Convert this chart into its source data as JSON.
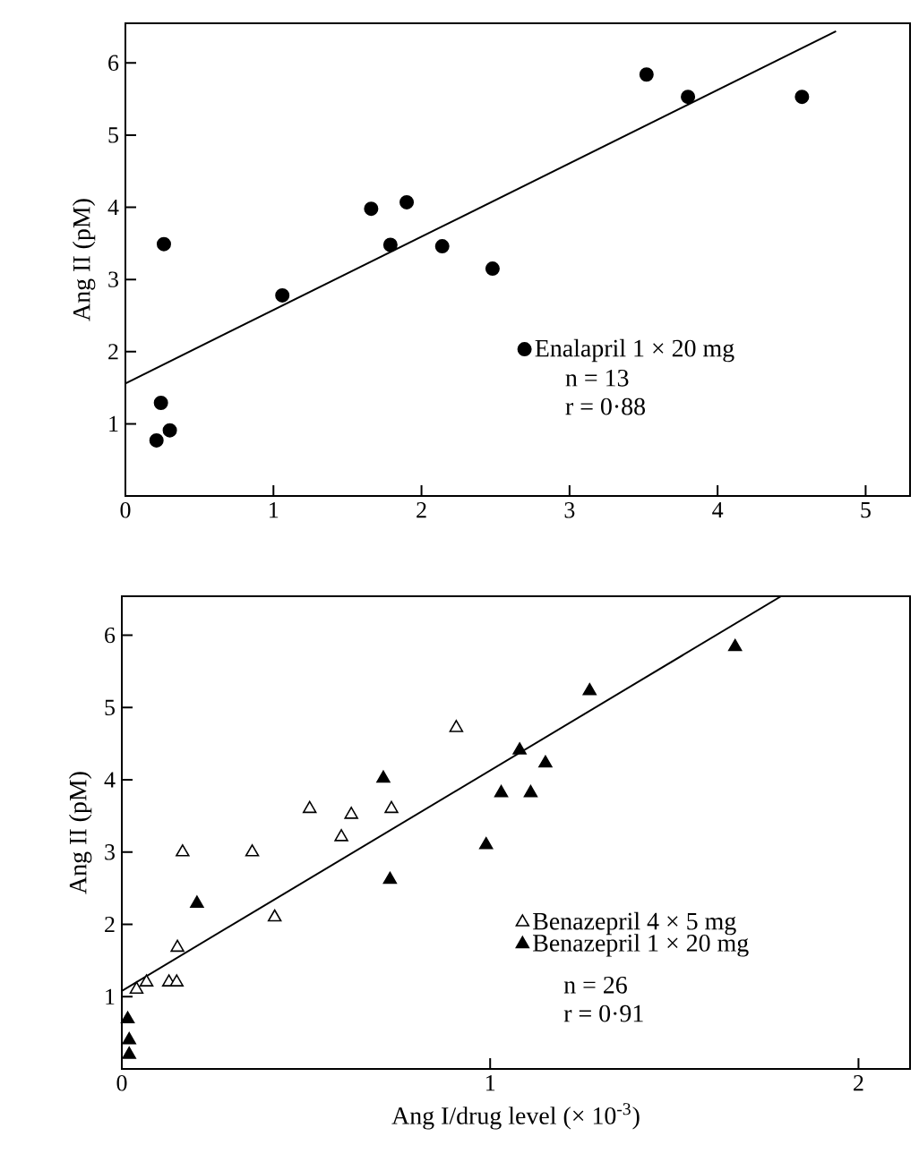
{
  "chart_data": [
    {
      "type": "scatter",
      "ylabel": "Ang II (pM)",
      "xlim": [
        0,
        5.3
      ],
      "ylim": [
        0,
        6.55
      ],
      "xticks": [
        0,
        1,
        2,
        3,
        4,
        5
      ],
      "yticks": [
        1,
        2,
        3,
        4,
        5,
        6
      ],
      "grid": false,
      "legend": "bottom right",
      "series": [
        {
          "name": "Enalapril 1 × 20 mg",
          "color": "#000000",
          "marker": "circle",
          "x": [
            0.26,
            0.24,
            0.21,
            0.3,
            1.06,
            1.66,
            1.79,
            1.9,
            2.14,
            2.48,
            3.52,
            3.8,
            4.57
          ],
          "values": [
            3.49,
            1.29,
            0.77,
            0.91,
            2.78,
            3.98,
            3.48,
            4.07,
            3.46,
            3.15,
            5.84,
            5.53,
            5.53
          ]
        },
        {
          "type": "line",
          "color": "#000000",
          "marker": "none",
          "x": [
            0,
            4.8
          ],
          "values": [
            1.56,
            6.44
          ]
        }
      ],
      "annotations": [
        "n = 13",
        "r = 0·88"
      ]
    },
    {
      "type": "scatter",
      "ylabel": "Ang II (pM)",
      "xlabel": "Ang I/drug level (× 10$^{-3}$)",
      "xlim": [
        0,
        2.14
      ],
      "ylim": [
        0,
        6.54
      ],
      "xticks": [
        0,
        1,
        2
      ],
      "yticks": [
        1,
        2,
        3,
        4,
        5,
        6
      ],
      "grid": false,
      "legend": "bottom right",
      "series": [
        {
          "name": "Benazepril 4 × 5 mg",
          "color": "#ffffff",
          "marker": "triangle",
          "x": [
            0.165,
            0.354,
            0.415,
            0.51,
            0.596,
            0.623,
            0.732,
            0.908,
            0.151,
            0.04,
            0.067,
            0.128,
            0.149
          ],
          "values": [
            3.0,
            3.0,
            2.1,
            3.6,
            3.21,
            3.52,
            3.6,
            4.72,
            1.68,
            1.1,
            1.2,
            1.2,
            1.2
          ]
        },
        {
          "name": "Benazepril 1 × 20 mg",
          "color": "#000000",
          "marker": "triangle",
          "x": [
            0.204,
            0.71,
            0.728,
            0.989,
            1.03,
            1.08,
            1.11,
            1.15,
            1.27,
            1.665,
            0.016,
            0.02,
            0.02
          ],
          "values": [
            2.29,
            4.02,
            2.62,
            3.1,
            3.82,
            4.41,
            3.82,
            4.23,
            5.23,
            5.84,
            0.69,
            0.4,
            0.2
          ]
        },
        {
          "type": "line",
          "color": "#000000",
          "marker": "none",
          "x": [
            0,
            1.79
          ],
          "values": [
            1.08,
            6.54
          ]
        }
      ],
      "annotations": [
        "n = 26",
        "r = 0·91"
      ]
    }
  ]
}
